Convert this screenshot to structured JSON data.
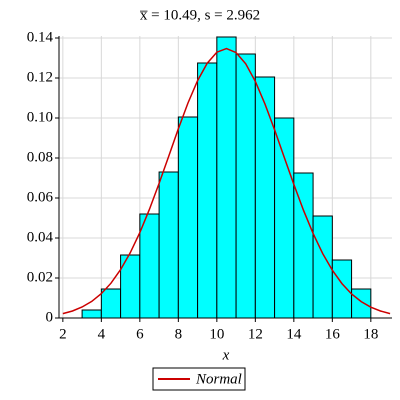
{
  "chart_data": {
    "type": "histogram",
    "title": "x̅ = 10.49,  s = 2.962",
    "xlabel": "x",
    "bins": [
      3,
      4,
      5,
      6,
      7,
      8,
      9,
      10,
      11,
      12,
      13,
      14,
      15,
      16,
      17,
      18
    ],
    "values": [
      0.004,
      0.0145,
      0.0315,
      0.052,
      0.073,
      0.1005,
      0.1275,
      0.1405,
      0.132,
      0.1205,
      0.1,
      0.0725,
      0.051,
      0.029,
      0.0145
    ],
    "color": "#00ffff",
    "curve": {
      "name": "Normal",
      "color": "#cc0000",
      "x": [
        2,
        2.5,
        3,
        3.5,
        4,
        4.5,
        5,
        5.5,
        6,
        6.5,
        7,
        7.5,
        8,
        8.5,
        9,
        9.5,
        10,
        10.5,
        11,
        11.5,
        12,
        12.5,
        13,
        13.5,
        14,
        14.5,
        15,
        15.5,
        16,
        16.5,
        17,
        17.5,
        18,
        18.5,
        19
      ],
      "values": [
        0.0022,
        0.0035,
        0.0055,
        0.0083,
        0.0122,
        0.0174,
        0.0242,
        0.0326,
        0.0427,
        0.0544,
        0.0673,
        0.0809,
        0.0946,
        0.1075,
        0.1187,
        0.1274,
        0.1329,
        0.1347,
        0.1327,
        0.1271,
        0.1183,
        0.107,
        0.0941,
        0.0804,
        0.0668,
        0.0539,
        0.0423,
        0.0322,
        0.0239,
        0.0172,
        0.012,
        0.0082,
        0.0054,
        0.0035,
        0.0022
      ]
    },
    "xlim": [
      1.8,
      19.1
    ],
    "ylim": [
      0,
      0.141
    ],
    "xticks": [
      2,
      4,
      6,
      8,
      10,
      12,
      14,
      16,
      18
    ],
    "yticks": [
      0,
      0.02,
      0.04,
      0.06,
      0.08,
      {
        "value": 0.1,
        "label": "0.10"
      },
      0.12,
      0.14
    ],
    "grid": true
  }
}
